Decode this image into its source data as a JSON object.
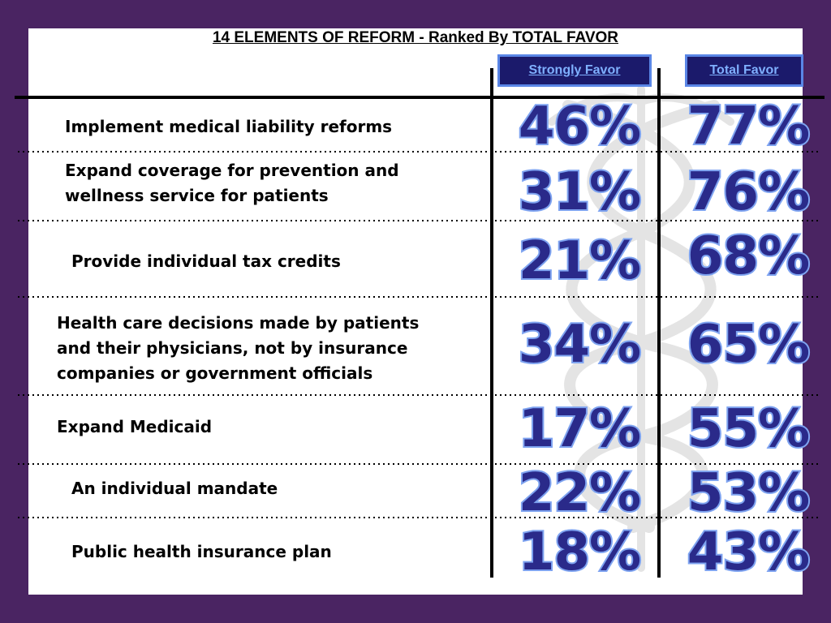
{
  "title": "14 ELEMENTS OF REFORM - Ranked By TOTAL FAVOR",
  "colors": {
    "frame": "#4a2462",
    "header_fill": "#1b1a6b",
    "header_border": "#5a86e6",
    "header_text": "#7fb0ff",
    "number_fill": "#2a2a8a",
    "number_outline": "#7ea3f0"
  },
  "columns": {
    "strongly_favor": "Strongly Favor",
    "total_favor": "Total Favor"
  },
  "rows": [
    {
      "label": "Implement medical liability reforms",
      "strong": "46%",
      "total": "77%"
    },
    {
      "label": "Expand coverage for prevention and\nwellness service for patients",
      "strong": "31%",
      "total": "76%"
    },
    {
      "label": "Provide individual tax credits",
      "strong": "21%",
      "total": "68%"
    },
    {
      "label": "Health care decisions made by patients\nand their physicians, not by insurance\ncompanies or government officials",
      "strong": "34%",
      "total": "65%"
    },
    {
      "label": "Expand Medicaid",
      "strong": "17%",
      "total": "55%"
    },
    {
      "label": "An individual mandate",
      "strong": "22%",
      "total": "53%"
    },
    {
      "label": "Public health insurance plan",
      "strong": "18%",
      "total": "43%"
    }
  ],
  "chart_data": {
    "type": "table",
    "title": "14 ELEMENTS OF REFORM - Ranked By TOTAL FAVOR",
    "columns": [
      "Strongly Favor",
      "Total Favor"
    ],
    "categories": [
      "Implement medical liability reforms",
      "Expand coverage for prevention and wellness service for patients",
      "Provide individual tax credits",
      "Health care decisions made by patients and their physicians, not by insurance companies or government officials",
      "Expand Medicaid",
      "An individual mandate",
      "Public health insurance plan"
    ],
    "series": [
      {
        "name": "Strongly Favor",
        "values": [
          46,
          31,
          21,
          34,
          17,
          22,
          18
        ]
      },
      {
        "name": "Total Favor",
        "values": [
          77,
          76,
          68,
          65,
          55,
          53,
          43
        ]
      }
    ]
  }
}
